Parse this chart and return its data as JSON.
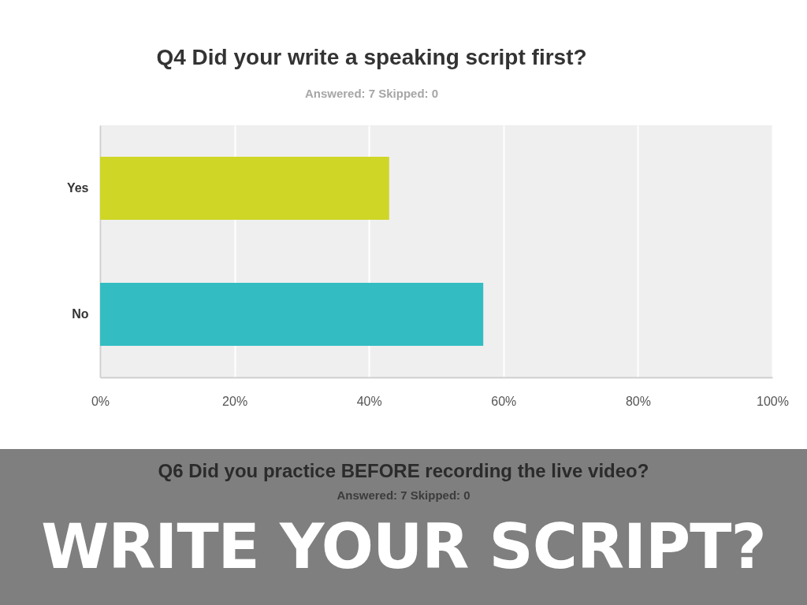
{
  "chart_data": {
    "type": "bar",
    "orientation": "horizontal",
    "title": "Q4 Did your write a speaking script first?",
    "subtitle": "Answered: 7 Skipped: 0",
    "categories": [
      "Yes",
      "No"
    ],
    "values": [
      43,
      57
    ],
    "colors": [
      "#cfd626",
      "#33bdc2"
    ],
    "xlim": [
      0,
      100
    ],
    "xticks": [
      {
        "value": 0,
        "label": "0%"
      },
      {
        "value": 20,
        "label": "20%"
      },
      {
        "value": 40,
        "label": "40%"
      },
      {
        "value": 60,
        "label": "60%"
      },
      {
        "value": 80,
        "label": "80%"
      },
      {
        "value": 100,
        "label": "100%"
      }
    ],
    "grid": "x",
    "annotations": [
      "Q6 Did you practice BEFORE recording the live video?",
      "Answered: 7 Skipped: 0",
      "WRITE YOUR SCRIPT?"
    ]
  }
}
